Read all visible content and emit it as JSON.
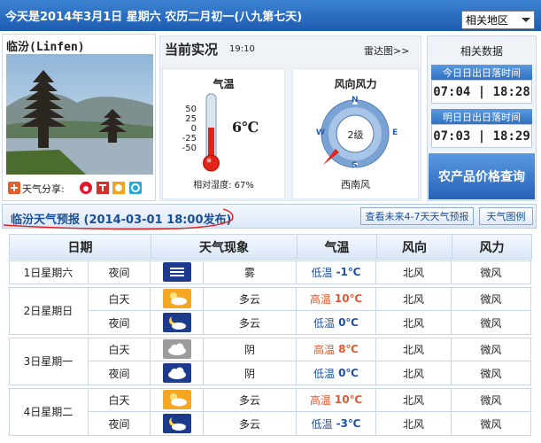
{
  "header": {
    "date_line": "今天是2014年3月1日 星期六 农历二月初一(八九第七天)",
    "region_select": "相关地区"
  },
  "city": {
    "name": "临汾(Linfen)",
    "share_label": "天气分享:"
  },
  "current": {
    "title": "当前实况",
    "time": "19:10",
    "radar_link": "雷达图>>",
    "temperature": {
      "title": "气温",
      "scale": [
        50,
        25,
        0,
        -25,
        -50
      ],
      "value": "6℃",
      "humidity": "相对湿度: 67%"
    },
    "wind": {
      "title": "风向风力",
      "directions": [
        "N",
        "E",
        "S",
        "W"
      ],
      "level": "2级",
      "direction": "西南风"
    }
  },
  "related": {
    "title": "相关数据",
    "today": {
      "label": "今日日出日落时间",
      "times": "07:04 | 18:28"
    },
    "tomorrow": {
      "label": "明日日出日落时间",
      "times": "07:03 | 18:29"
    },
    "price_button": "农产品价格查询"
  },
  "forecast": {
    "title": "临汾天气预报 (2014-03-01 18:00发布)",
    "more_button": "查看未来4-7天天气预报",
    "legend_button": "天气图例",
    "columns": [
      "日期",
      "天气现象",
      "气温",
      "风向",
      "风力"
    ],
    "days": [
      {
        "date": "1日星期六",
        "periods": [
          {
            "period": "夜间",
            "weather": "雾",
            "temp_label": "低温",
            "temp": "-1℃",
            "wind_dir": "北风",
            "wind_force": "微风"
          }
        ]
      },
      {
        "date": "2日星期日",
        "periods": [
          {
            "period": "白天",
            "weather": "多云",
            "temp_label": "高温",
            "temp": "10℃",
            "wind_dir": "北风",
            "wind_force": "微风"
          },
          {
            "period": "夜间",
            "weather": "多云",
            "temp_label": "低温",
            "temp": "0℃",
            "wind_dir": "北风",
            "wind_force": "微风"
          }
        ]
      },
      {
        "date": "3日星期一",
        "periods": [
          {
            "period": "白天",
            "weather": "阴",
            "temp_label": "高温",
            "temp": "8℃",
            "wind_dir": "北风",
            "wind_force": "微风"
          },
          {
            "period": "夜间",
            "weather": "阴",
            "temp_label": "低温",
            "temp": "0℃",
            "wind_dir": "北风",
            "wind_force": "微风"
          }
        ]
      },
      {
        "date": "4日星期二",
        "periods": [
          {
            "period": "白天",
            "weather": "多云",
            "temp_label": "高温",
            "temp": "10℃",
            "wind_dir": "北风",
            "wind_force": "微风"
          },
          {
            "period": "夜间",
            "weather": "多云",
            "temp_label": "低温",
            "temp": "-3℃",
            "wind_dir": "北风",
            "wind_force": "微风"
          }
        ]
      }
    ]
  }
}
